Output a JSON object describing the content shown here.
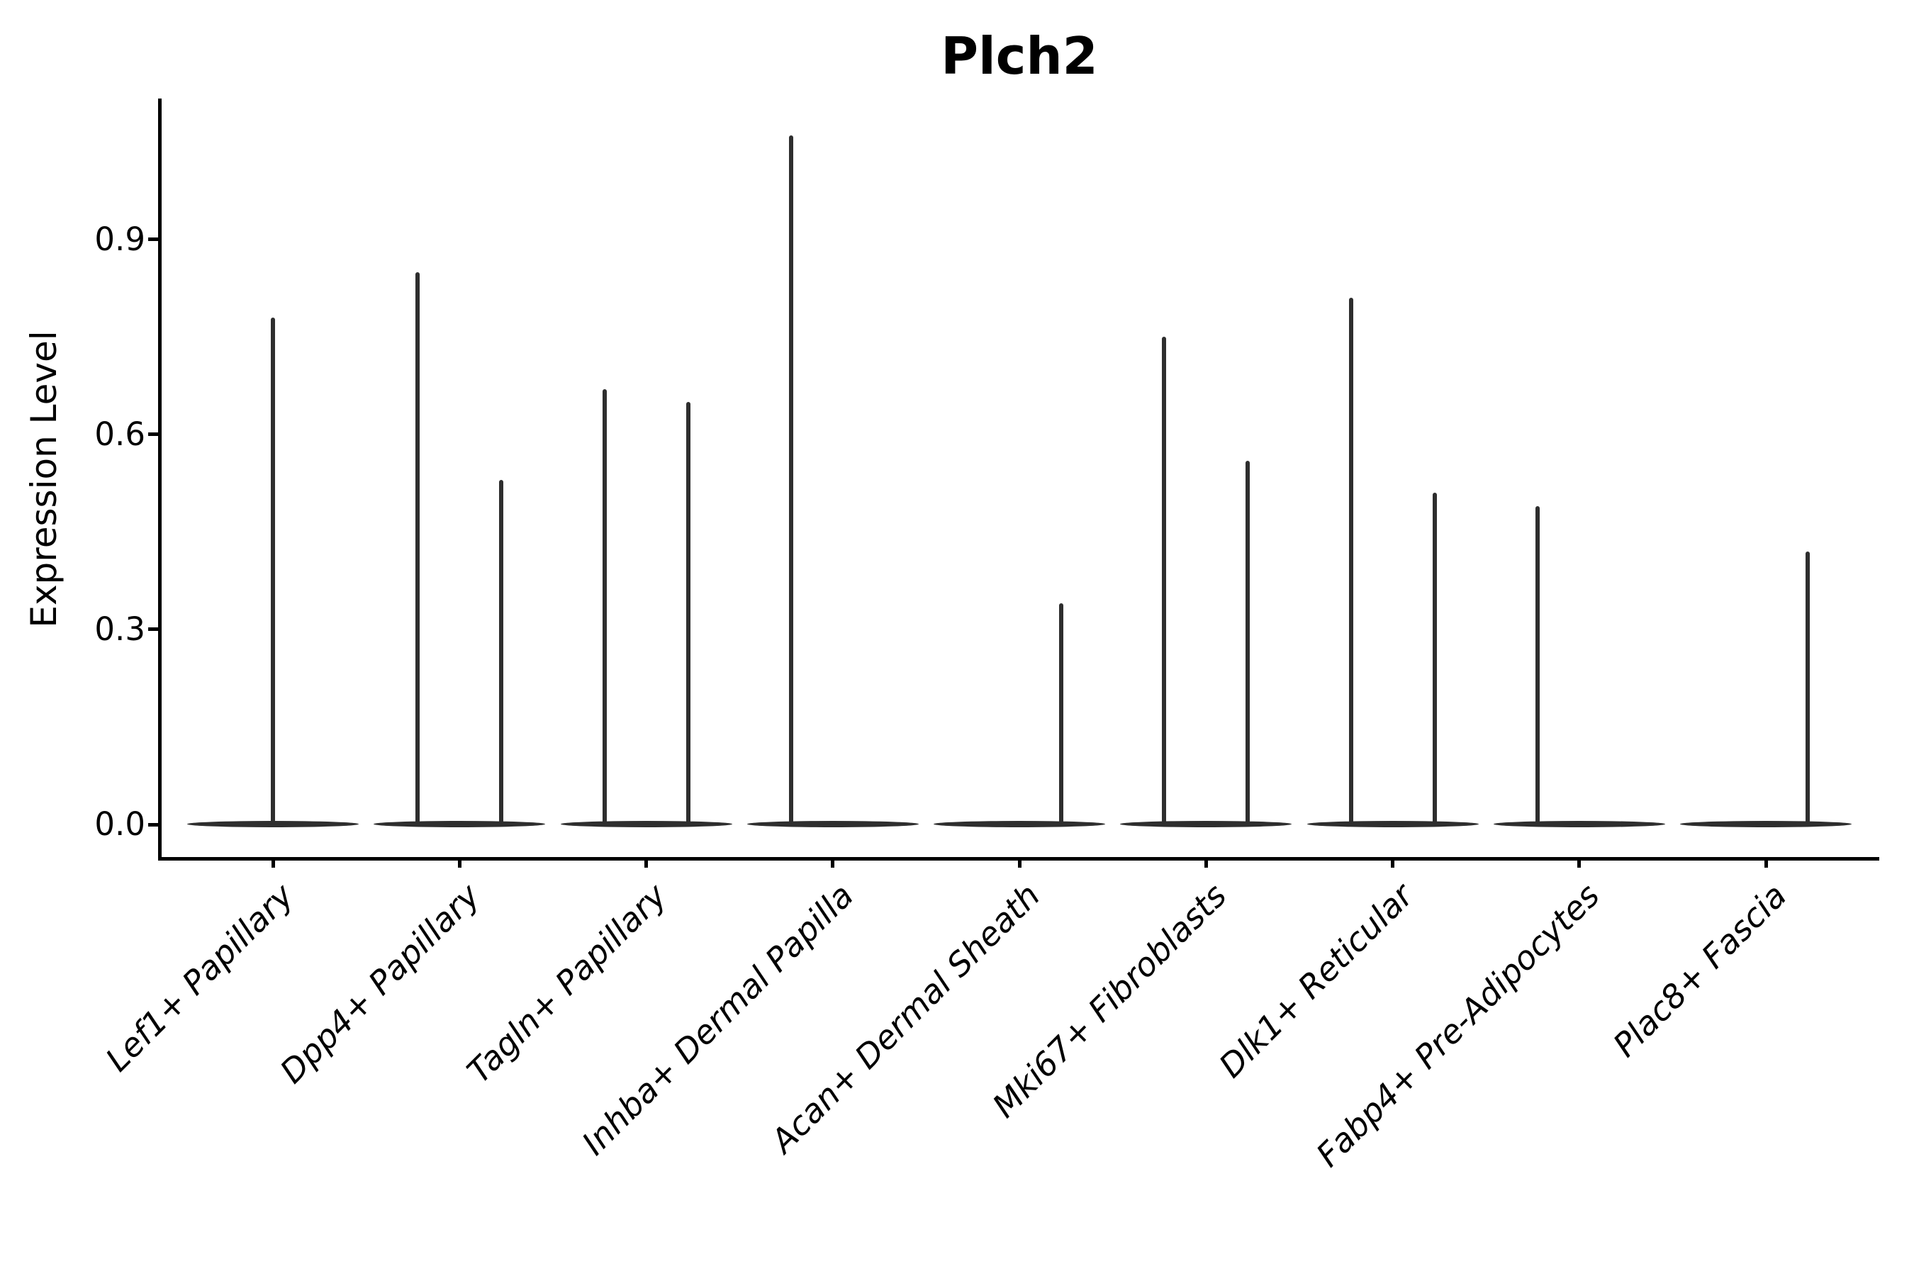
{
  "title": "Plch2",
  "chart_data": {
    "type": "violin",
    "title": "Plch2",
    "ylabel": "Expression Level",
    "xlabel": "",
    "y_ticks": [
      {
        "value": 0.0,
        "label": "0.0"
      },
      {
        "value": 0.3,
        "label": "0.3"
      },
      {
        "value": 0.6,
        "label": "0.6"
      },
      {
        "value": 0.9,
        "label": "0.9"
      }
    ],
    "ylim": [
      0,
      1.12
    ],
    "grid": false,
    "legend": "none",
    "style": {
      "violin_color": "#2e2e2e",
      "axis_color": "#000000",
      "background": "#ffffff"
    },
    "categories": [
      {
        "label": "Lef1+ Papillary",
        "violins": [
          {
            "side": "center",
            "max": 0.78
          }
        ]
      },
      {
        "label": "Dpp4+ Papillary",
        "violins": [
          {
            "side": "left",
            "max": 0.85
          },
          {
            "side": "right",
            "max": 0.53
          }
        ]
      },
      {
        "label": "Tagln+ Papillary",
        "violins": [
          {
            "side": "left",
            "max": 0.67
          },
          {
            "side": "right",
            "max": 0.65
          }
        ]
      },
      {
        "label": "Inhba+ Dermal Papilla",
        "violins": [
          {
            "side": "left",
            "max": 1.06
          },
          {
            "side": "right",
            "max": 0.0
          }
        ]
      },
      {
        "label": "Acan+ Dermal Sheath",
        "violins": [
          {
            "side": "left",
            "max": 0.0
          },
          {
            "side": "right",
            "max": 0.34
          }
        ]
      },
      {
        "label": "Mki67+ Fibroblasts",
        "violins": [
          {
            "side": "left",
            "max": 0.75
          },
          {
            "side": "right",
            "max": 0.56
          }
        ]
      },
      {
        "label": "Dlk1+ Reticular",
        "violins": [
          {
            "side": "left",
            "max": 0.81
          },
          {
            "side": "right",
            "max": 0.51
          }
        ]
      },
      {
        "label": "Fabp4+ Pre-Adipocytes",
        "violins": [
          {
            "side": "left",
            "max": 0.49
          },
          {
            "side": "right",
            "max": 0.0
          }
        ]
      },
      {
        "label": "Plac8+ Fascia",
        "violins": [
          {
            "side": "left",
            "max": 0.0
          },
          {
            "side": "right",
            "max": 0.42
          }
        ]
      }
    ]
  }
}
